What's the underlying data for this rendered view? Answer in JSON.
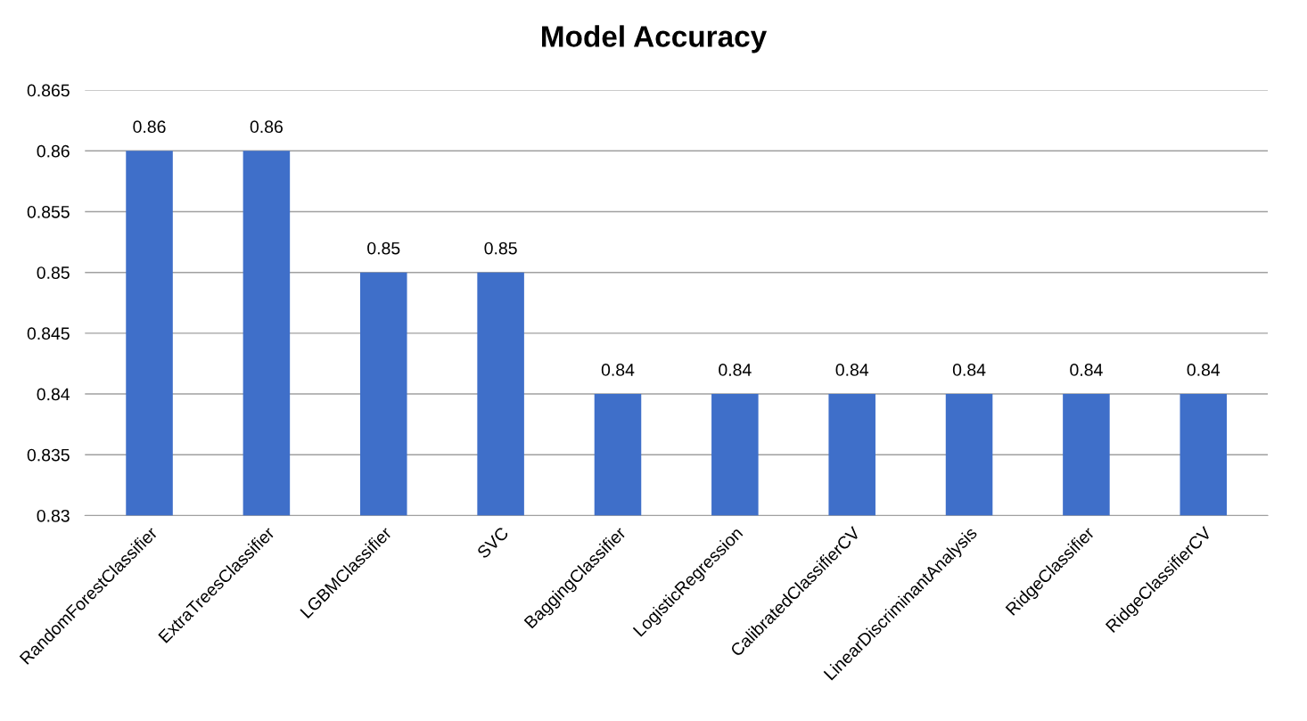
{
  "chart_data": {
    "type": "bar",
    "title": "Model Accuracy",
    "categories": [
      "RandomForestClassifier",
      "ExtraTreesClassifier",
      "LGBMClassifier",
      "SVC",
      "BaggingClassifier",
      "LogisticRegression",
      "CalibratedClassifierCV",
      "LinearDiscriminantAnalysis",
      "RidgeClassifier",
      "RidgeClassifierCV"
    ],
    "values": [
      0.86,
      0.86,
      0.85,
      0.85,
      0.84,
      0.84,
      0.84,
      0.84,
      0.84,
      0.84
    ],
    "color": "#3f6fc9",
    "ylim": [
      0.83,
      0.865
    ],
    "yticks": [
      0.83,
      0.835,
      0.84,
      0.845,
      0.85,
      0.855,
      0.86,
      0.865
    ],
    "grid": "y",
    "data_labels": true
  }
}
